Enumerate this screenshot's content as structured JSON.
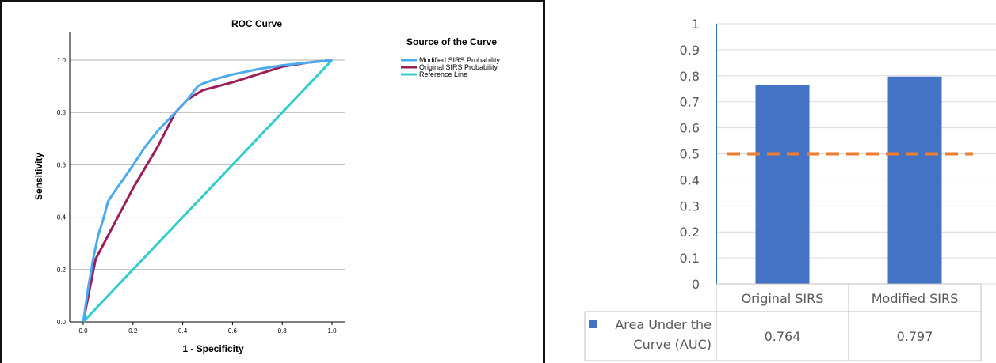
{
  "chart_data": [
    {
      "type": "line",
      "title": "ROC Curve",
      "xlabel": "1 - Specificity",
      "ylabel": "Sensitivity",
      "xlim": [
        0,
        1
      ],
      "ylim": [
        0,
        1
      ],
      "x_ticks": [
        "0.0",
        "0.2",
        "0.4",
        "0.6",
        "0.8",
        "1.0"
      ],
      "y_ticks": [
        "0.0",
        "0.2",
        "0.4",
        "0.6",
        "0.8",
        "1.0"
      ],
      "grid": "horizontal",
      "legend_title": "Source of the Curve",
      "legend_position": "top-right",
      "series": [
        {
          "name": "Modified SIRS Probability",
          "color": "#4aaaf0",
          "points": [
            [
              0,
              0
            ],
            [
              0.02,
              0.13
            ],
            [
              0.04,
              0.24
            ],
            [
              0.06,
              0.33
            ],
            [
              0.08,
              0.39
            ],
            [
              0.1,
              0.46
            ],
            [
              0.12,
              0.49
            ],
            [
              0.18,
              0.57
            ],
            [
              0.25,
              0.67
            ],
            [
              0.3,
              0.73
            ],
            [
              0.38,
              0.81
            ],
            [
              0.42,
              0.85
            ],
            [
              0.46,
              0.9
            ],
            [
              0.48,
              0.91
            ],
            [
              0.54,
              0.93
            ],
            [
              0.6,
              0.945
            ],
            [
              0.7,
              0.965
            ],
            [
              0.8,
              0.98
            ],
            [
              0.9,
              0.99
            ],
            [
              1,
              1
            ]
          ]
        },
        {
          "name": "Original SIRS Probability",
          "color": "#9b1d5a",
          "points": [
            [
              0,
              0
            ],
            [
              0.05,
              0.24
            ],
            [
              0.2,
              0.51
            ],
            [
              0.3,
              0.67
            ],
            [
              0.37,
              0.8
            ],
            [
              0.42,
              0.85
            ],
            [
              0.48,
              0.885
            ],
            [
              0.5,
              0.89
            ],
            [
              0.6,
              0.915
            ],
            [
              0.7,
              0.945
            ],
            [
              0.8,
              0.975
            ],
            [
              0.9,
              0.99
            ],
            [
              1,
              1
            ]
          ]
        },
        {
          "name": "Reference Line",
          "color": "#33cccc",
          "points": [
            [
              0,
              0
            ],
            [
              1,
              1
            ]
          ]
        }
      ]
    },
    {
      "type": "bar",
      "categories": [
        "Original SIRS",
        "Modified SIRS"
      ],
      "series": [
        {
          "name": "Area Under the Curve (AUC)",
          "values": [
            0.764,
            0.797
          ],
          "color": "#4472c4"
        }
      ],
      "table_values": [
        "0.764",
        "0.797"
      ],
      "reference_line": {
        "value": 0.5,
        "color": "#ed7d31",
        "style": "dashed"
      },
      "ylim": [
        0,
        1
      ],
      "y_ticks": [
        "0",
        "0.1",
        "0.2",
        "0.3",
        "0.4",
        "0.5",
        "0.6",
        "0.7",
        "0.8",
        "0.9",
        "1"
      ],
      "grid": "horizontal",
      "legend_position": "data-table"
    }
  ]
}
